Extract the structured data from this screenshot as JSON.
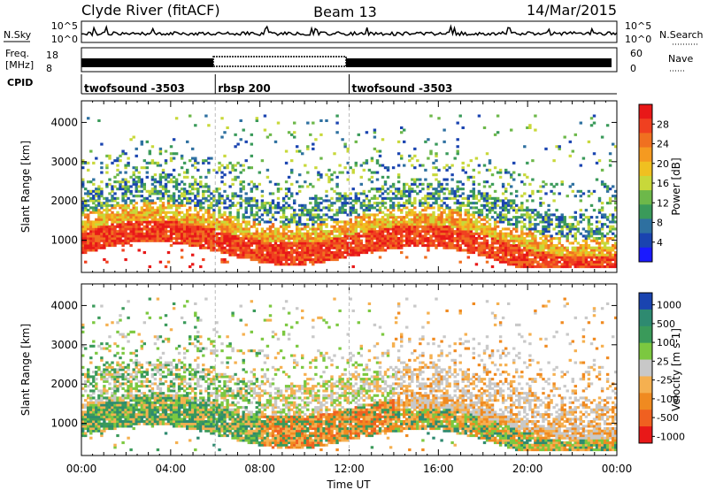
{
  "header": {
    "station": "Clyde River (fitACF)",
    "beam": "Beam 13",
    "date": "14/Mar/2015"
  },
  "top_panels": {
    "left_labels": {
      "nsky": "N.Sky",
      "freq_line1": "Freq.",
      "freq_line2": "[MHz]",
      "cpid": "CPID"
    },
    "right_labels": {
      "nsearch": "N.Search",
      "nave": "Nave"
    },
    "noise_ticks_left": [
      "10^5",
      "10^0"
    ],
    "noise_ticks_right": [
      "10^5",
      "10^0"
    ],
    "freq_ticks": [
      "18",
      "8"
    ],
    "nave_ticks": [
      "60",
      "0"
    ],
    "cpid_segments": [
      {
        "label": "twofsound -3503",
        "start_hour": 0,
        "end_hour": 6
      },
      {
        "label": "rbsp 200",
        "start_hour": 6,
        "end_hour": 12
      },
      {
        "label": "twofsound -3503",
        "start_hour": 12,
        "end_hour": 24
      }
    ]
  },
  "chart_data": [
    {
      "type": "heatmap",
      "title": "",
      "xlabel": "",
      "ylabel": "Slant Range [km]",
      "xlim_hours": [
        0,
        24
      ],
      "ylim": [
        180,
        4550
      ],
      "ytick_labels": [
        "1000",
        "2000",
        "3000",
        "4000"
      ],
      "grid": false,
      "colorbar": {
        "label": "Power [dB]",
        "tick_labels": [
          "4",
          "8",
          "12",
          "16",
          "20",
          "24",
          "28"
        ],
        "range": [
          0,
          32
        ],
        "colors": [
          "#1a1aff",
          "#1a44b0",
          "#2e70a0",
          "#3a9a5a",
          "#6db84a",
          "#c8d83a",
          "#f0c020",
          "#f59a20",
          "#f07020",
          "#f04020",
          "#e81818"
        ]
      },
      "description_bands": [
        {
          "start_hour": 0,
          "end_hour": 24,
          "range_km": [
            600,
            1400
          ],
          "value_db": 28
        },
        {
          "start_hour": 0,
          "end_hour": 12,
          "range_km": [
            1400,
            2200
          ],
          "value_db": 18
        },
        {
          "start_hour": 12,
          "end_hour": 24,
          "range_km": [
            1300,
            2400
          ],
          "value_db": 12
        }
      ]
    },
    {
      "type": "heatmap",
      "title": "",
      "xlabel": "Time UT",
      "ylabel": "Slant Range [km]",
      "xlim_hours": [
        0,
        24
      ],
      "ylim": [
        180,
        4550
      ],
      "xtick_labels": [
        "00:00",
        "04:00",
        "08:00",
        "12:00",
        "16:00",
        "20:00",
        "00:00"
      ],
      "ytick_labels": [
        "1000",
        "2000",
        "3000",
        "4000"
      ],
      "grid": false,
      "colorbar": {
        "label": "Velocity [m s-1]",
        "tick_labels": [
          "1000",
          "500",
          "100",
          "25",
          "-25",
          "-100",
          "-500",
          "-1000"
        ],
        "colors": [
          "#1a44b0",
          "#2e8a70",
          "#3a9a5a",
          "#7cc840",
          "#c8c8c8",
          "#f5b050",
          "#f08a20",
          "#f06020",
          "#e81818"
        ]
      },
      "description_bands": [
        {
          "start_hour": 0,
          "end_hour": 8,
          "range_km": [
            700,
            1500
          ],
          "value_ms": 200
        },
        {
          "start_hour": 8,
          "end_hour": 14,
          "range_km": [
            800,
            1600
          ],
          "value_ms": -150
        },
        {
          "start_hour": 12,
          "end_hour": 24,
          "range_km": [
            500,
            900
          ],
          "value_ms": -100
        }
      ]
    }
  ]
}
